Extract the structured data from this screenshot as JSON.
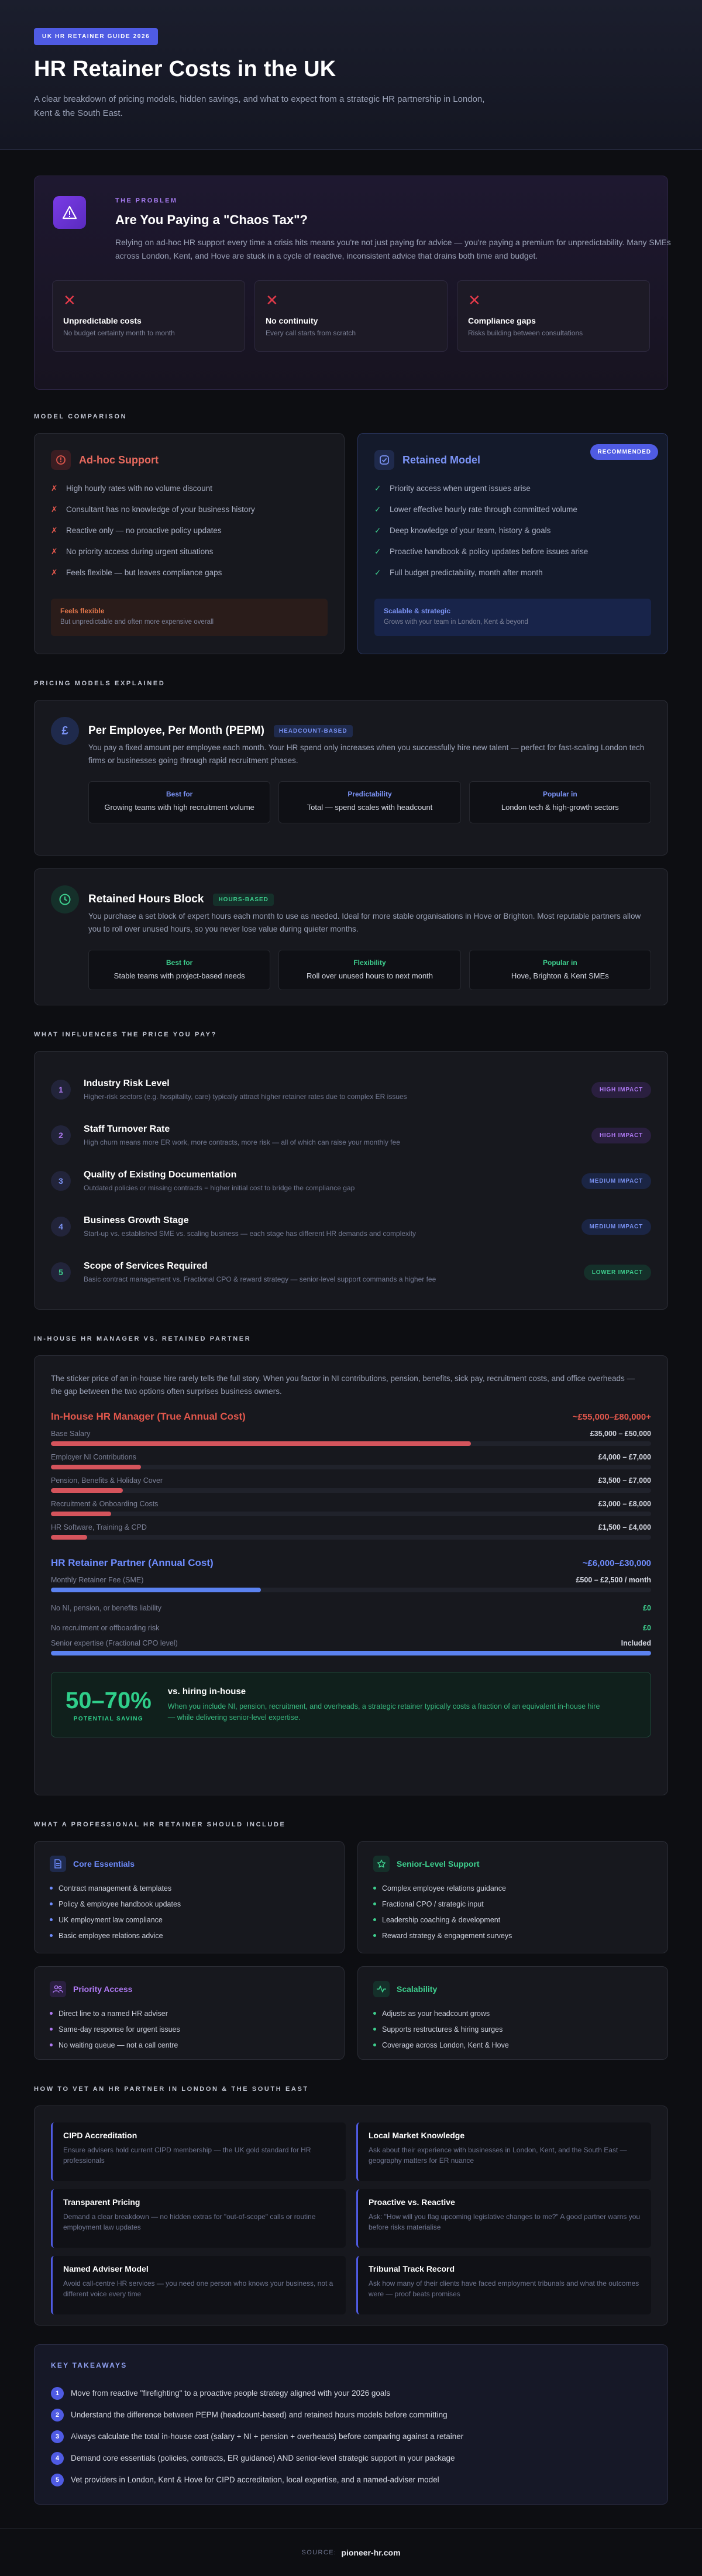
{
  "hero": {
    "pill": "UK HR RETAINER GUIDE 2026",
    "title": "HR Retainer Costs in the UK",
    "subtitle": "A clear breakdown of pricing models, hidden savings, and what to expect from a strategic HR partnership in London, Kent & the South East."
  },
  "problem": {
    "eyebrow": "THE PROBLEM",
    "title": "Are You Paying a \"Chaos Tax\"?",
    "desc": "Relying on ad-hoc HR support every time a crisis hits means you're not just paying for advice — you're paying a premium for unpredictability. Many SMEs across London, Kent, and Hove are stuck in a cycle of reactive, inconsistent advice that drains both time and budget.",
    "cards": [
      {
        "title": "Unpredictable costs",
        "sub": "No budget certainty month to month"
      },
      {
        "title": "No continuity",
        "sub": "Every call starts from scratch"
      },
      {
        "title": "Compliance gaps",
        "sub": "Risks building between consultations"
      }
    ]
  },
  "comparison": {
    "label": "MODEL COMPARISON",
    "adhoc": {
      "title": "Ad-hoc Support",
      "items": [
        "High hourly rates with no volume discount",
        "Consultant has no knowledge of your business history",
        "Reactive only — no proactive policy updates",
        "No priority access during urgent situations",
        "Feels flexible — but leaves compliance gaps"
      ],
      "foot_title": "Feels flexible",
      "foot_sub": "But unpredictable and often more expensive overall"
    },
    "retained": {
      "badge": "RECOMMENDED",
      "title": "Retained Model",
      "items": [
        "Priority access when urgent issues arise",
        "Lower effective hourly rate through committed volume",
        "Deep knowledge of your team, history & goals",
        "Proactive handbook & policy updates before issues arise",
        "Full budget predictability, month after month"
      ],
      "foot_title": "Scalable & strategic",
      "foot_sub": "Grows with your team in London, Kent & beyond"
    }
  },
  "pricing": {
    "label": "PRICING MODELS EXPLAINED",
    "pepm": {
      "icon": "£",
      "title": "Per Employee, Per Month (PEPM)",
      "tag": "HEADCOUNT-BASED",
      "desc": "You pay a fixed amount per employee each month. Your HR spend only increases when you successfully hire new talent — perfect for fast-scaling London tech firms or businesses going through rapid recruitment phases.",
      "cells": [
        {
          "title": "Best for",
          "value": "Growing teams with high recruitment volume"
        },
        {
          "title": "Predictability",
          "value": "Total — spend scales with headcount"
        },
        {
          "title": "Popular in",
          "value": "London tech & high-growth sectors"
        }
      ]
    },
    "hours": {
      "title": "Retained Hours Block",
      "tag": "HOURS-BASED",
      "desc": "You purchase a set block of expert hours each month to use as needed. Ideal for more stable organisations in Hove or Brighton. Most reputable partners allow you to roll over unused hours, so you never lose value during quieter months.",
      "cells": [
        {
          "title": "Best for",
          "value": "Stable teams with project-based needs"
        },
        {
          "title": "Flexibility",
          "value": "Roll over unused hours to next month"
        },
        {
          "title": "Popular in",
          "value": "Hove, Brighton & Kent SMEs"
        }
      ]
    }
  },
  "factors": {
    "label": "WHAT INFLUENCES THE PRICE YOU PAY?",
    "rows": [
      {
        "n": "1",
        "title": "Industry Risk Level",
        "sub": "Higher-risk sectors (e.g. hospitality, care) typically attract higher retainer rates due to complex ER issues",
        "impact": "HIGH IMPACT",
        "level": "high"
      },
      {
        "n": "2",
        "title": "Staff Turnover Rate",
        "sub": "High churn means more ER work, more contracts, more risk — all of which can raise your monthly fee",
        "impact": "HIGH IMPACT",
        "level": "high"
      },
      {
        "n": "3",
        "title": "Quality of Existing Documentation",
        "sub": "Outdated policies or missing contracts = higher initial cost to bridge the compliance gap",
        "impact": "MEDIUM IMPACT",
        "level": "medium"
      },
      {
        "n": "4",
        "title": "Business Growth Stage",
        "sub": "Start-up vs. established SME vs. scaling business — each stage has different HR demands and complexity",
        "impact": "MEDIUM IMPACT",
        "level": "medium"
      },
      {
        "n": "5",
        "title": "Scope of Services Required",
        "sub": "Basic contract management vs. Fractional CPO & reward strategy — senior-level support commands a higher fee",
        "impact": "LOWER IMPACT",
        "level": "low"
      }
    ]
  },
  "inhouse": {
    "label": "IN-HOUSE HR MANAGER VS. RETAINED PARTNER",
    "desc": "The sticker price of an in-house hire rarely tells the full story. When you factor in NI contributions, pension, benefits, sick pay, recruitment costs, and office overheads — the gap between the two options often surprises business owners.",
    "manager": {
      "title": "In-House HR Manager (True Annual Cost)",
      "range": "~£55,000–£80,000+",
      "lines": [
        {
          "label": "Base Salary",
          "value": "£35,000 – £50,000",
          "pct": 0.7
        },
        {
          "label": "Employer NI Contributions",
          "value": "£4,000 – £7,000",
          "pct": 0.15
        },
        {
          "label": "Pension, Benefits & Holiday Cover",
          "value": "£3,500 – £7,000",
          "pct": 0.12
        },
        {
          "label": "Recruitment & Onboarding Costs",
          "value": "£3,000 – £8,000",
          "pct": 0.1
        },
        {
          "label": "HR Software, Training & CPD",
          "value": "£1,500 – £4,000",
          "pct": 0.06
        }
      ]
    },
    "partner": {
      "title": "HR Retainer Partner (Annual Cost)",
      "range": "~£6,000–£30,000",
      "lines": [
        {
          "label": "Monthly Retainer Fee (SME)",
          "value": "£500 – £2,500 / month",
          "pct": 0.35
        },
        {
          "label": "No NI, pension, or benefits liability",
          "value": "£0",
          "pct": 0
        },
        {
          "label": "No recruitment or offboarding risk",
          "value": "£0",
          "pct": 0
        },
        {
          "label": "Senior expertise (Fractional CPO level)",
          "value": "Included",
          "pct": 1.0
        }
      ]
    },
    "saving": {
      "big": "50–70%",
      "small": "POTENTIAL SAVING",
      "title": "vs. hiring in-house",
      "sub": "When you include NI, pension, recruitment, and overheads, a strategic retainer typically costs a fraction of an equivalent in-house hire — while delivering senior-level expertise."
    }
  },
  "include": {
    "label": "WHAT A PROFESSIONAL HR RETAINER SHOULD INCLUDE",
    "cards": [
      {
        "title": "Core Essentials",
        "color": "#6f8dff",
        "items": [
          "Contract management & templates",
          "Policy & employee handbook updates",
          "UK employment law compliance",
          "Basic employee relations advice"
        ]
      },
      {
        "title": "Senior-Level Support",
        "color": "#3ecf8e",
        "items": [
          "Complex employee relations guidance",
          "Fractional CPO / strategic input",
          "Leadership coaching & development",
          "Reward strategy & engagement surveys"
        ]
      },
      {
        "title": "Priority Access",
        "color": "#b07af5",
        "items": [
          "Direct line to a named HR adviser",
          "Same-day response for urgent issues",
          "No waiting queue — not a call centre"
        ]
      },
      {
        "title": "Scalability",
        "color": "#3ecf8e",
        "items": [
          "Adjusts as your headcount grows",
          "Supports restructures & hiring surges",
          "Coverage across London, Kent & Hove"
        ]
      }
    ]
  },
  "vet": {
    "label": "HOW TO VET AN HR PARTNER IN LONDON & THE SOUTH EAST",
    "cells": [
      {
        "title": "CIPD Accreditation",
        "sub": "Ensure advisers hold current CIPD membership — the UK gold standard for HR professionals"
      },
      {
        "title": "Local Market Knowledge",
        "sub": "Ask about their experience with businesses in London, Kent, and the South East — geography matters for ER nuance"
      },
      {
        "title": "Transparent Pricing",
        "sub": "Demand a clear breakdown — no hidden extras for \"out-of-scope\" calls or routine employment law updates"
      },
      {
        "title": "Proactive vs. Reactive",
        "sub": "Ask: \"How will you flag upcoming legislative changes to me?\" A good partner warns you before risks materialise"
      },
      {
        "title": "Named Adviser Model",
        "sub": "Avoid call-centre HR services — you need one person who knows your business, not a different voice every time"
      },
      {
        "title": "Tribunal Track Record",
        "sub": "Ask how many of their clients have faced employment tribunals and what the outcomes were — proof beats promises"
      }
    ]
  },
  "takeaways": {
    "label": "KEY TAKEAWAYS",
    "items": [
      "Move from reactive \"firefighting\" to a proactive people strategy aligned with your 2026 goals",
      "Understand the difference between PEPM (headcount-based) and retained hours models before committing",
      "Always calculate the total in-house cost (salary + NI + pension + overheads) before comparing against a retainer",
      "Demand core essentials (policies, contracts, ER guidance) AND senior-level strategic support in your package",
      "Vet providers in London, Kent & Hove for CIPD accreditation, local expertise, and a named-adviser model"
    ]
  },
  "footer": {
    "label": "SOURCE:",
    "value": "pioneer-hr.com"
  }
}
